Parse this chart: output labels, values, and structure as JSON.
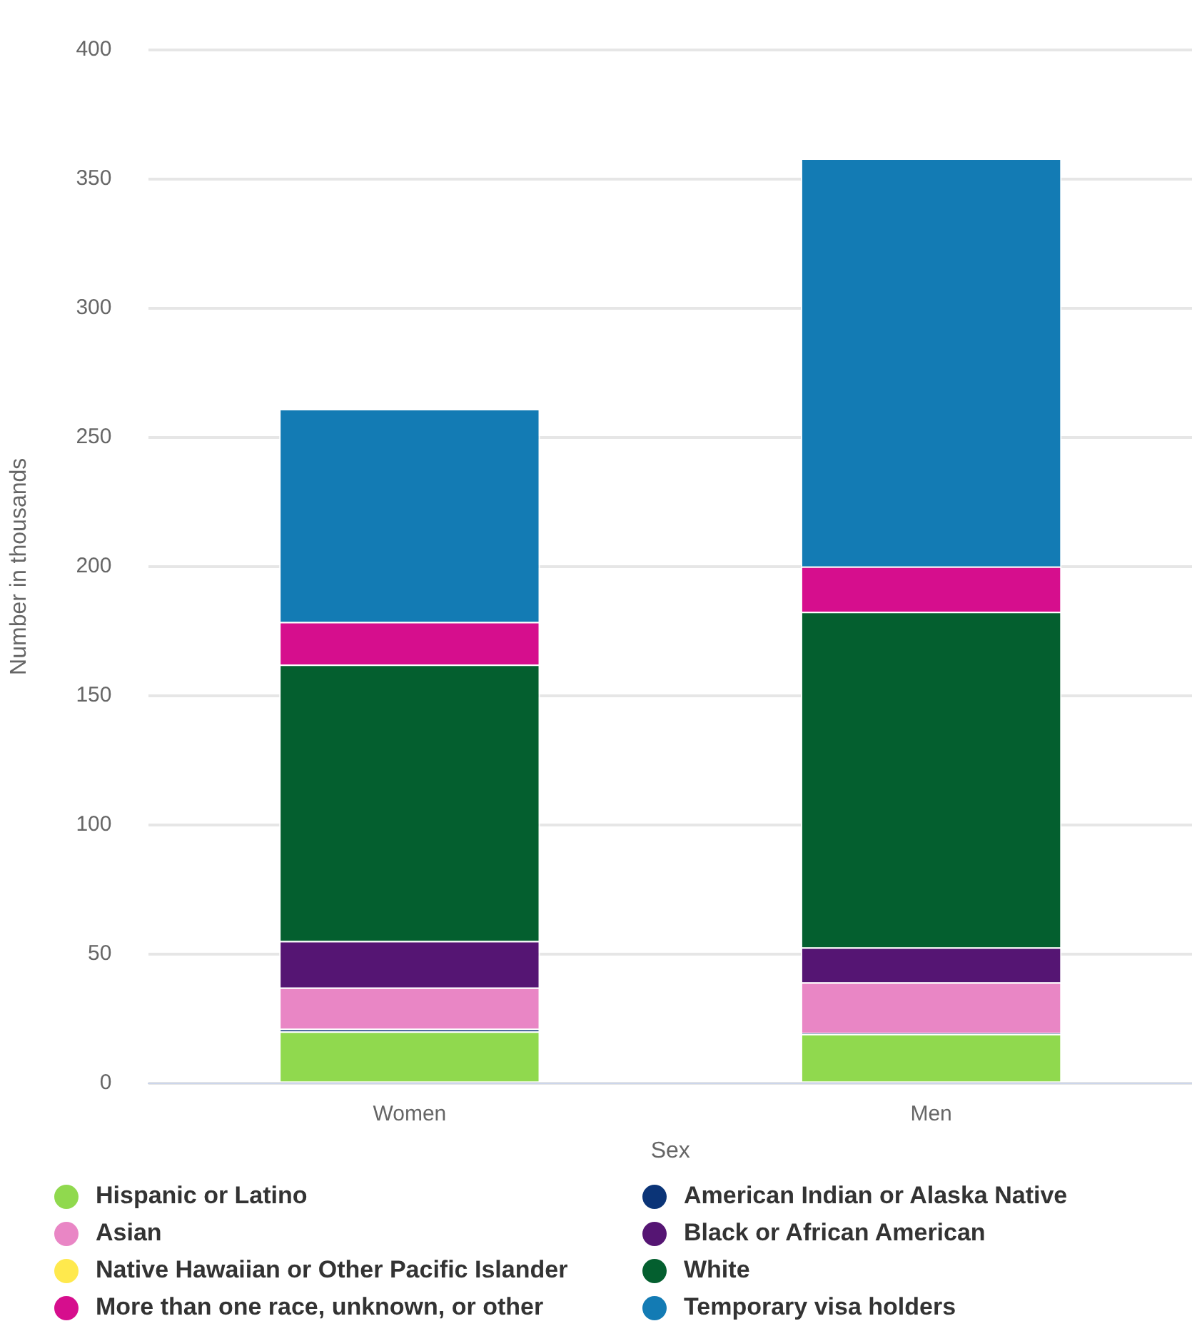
{
  "chart_data": {
    "type": "bar",
    "stacked": true,
    "xlabel": "Sex",
    "ylabel": "Number in thousands",
    "categories": [
      "Women",
      "Men"
    ],
    "series": [
      {
        "name": "Hispanic or Latino",
        "color": "#90d94e",
        "values": [
          20,
          19
        ]
      },
      {
        "name": "American Indian or Alaska Native",
        "color": "#0b3477",
        "values": [
          1,
          0.5
        ]
      },
      {
        "name": "Asian",
        "color": "#e986c5",
        "values": [
          16,
          19.5
        ]
      },
      {
        "name": "Black or African American",
        "color": "#551573",
        "values": [
          18,
          13.5
        ]
      },
      {
        "name": "Native Hawaiian or Other Pacific Islander",
        "color": "#ffe94d",
        "values": [
          null,
          null
        ]
      },
      {
        "name": "White",
        "color": "#045f2f",
        "values": [
          107,
          130
        ]
      },
      {
        "name": "More than one race, unknown, or other",
        "color": "#d60e8d",
        "values": [
          16.5,
          17.5
        ]
      },
      {
        "name": "Temporary visa holders",
        "color": "#137bb4",
        "values": [
          82.5,
          158
        ]
      }
    ],
    "ylim": [
      0,
      400
    ],
    "yticks": [
      0,
      50,
      100,
      150,
      200,
      250,
      300,
      350,
      400
    ],
    "grid": "y",
    "legend": "bottom"
  }
}
